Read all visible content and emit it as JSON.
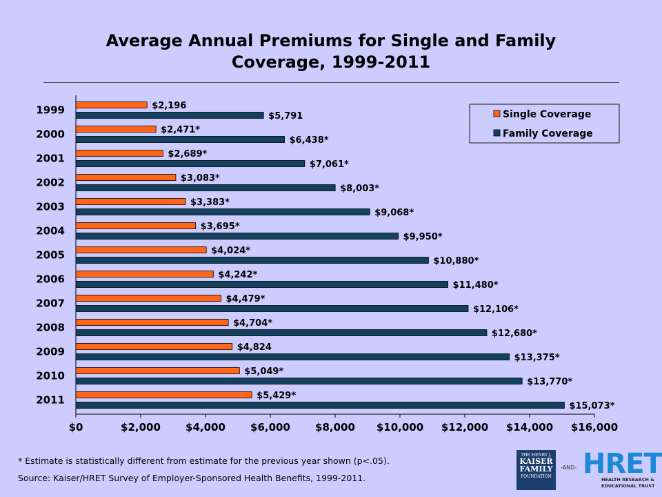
{
  "title_line1": "Average Annual Premiums for Single and Family",
  "title_line2": "Coverage, 1999-2011",
  "footnote": "* Estimate is statistically different from estimate for the previous year shown (p<.05).",
  "source": "Source:  Kaiser/HRET Survey of Employer-Sponsored Health Benefits, 1999-2011.",
  "logos": {
    "kff_top": "THE HENRY J.",
    "kff_lines": [
      "KAISER",
      "FAMILY"
    ],
    "kff_bottom": "FOUNDATION",
    "and_text": "-AND-",
    "hret": "HRET",
    "hret_sub": [
      "HEALTH RESEARCH &",
      "EDUCATIONAL TRUST"
    ]
  },
  "colors": {
    "single": "#ff6619",
    "family": "#13405f",
    "background": "#ccccff"
  },
  "chart_data": {
    "type": "bar",
    "orientation": "horizontal",
    "categories": [
      "1999",
      "2000",
      "2001",
      "2002",
      "2003",
      "2004",
      "2005",
      "2006",
      "2007",
      "2008",
      "2009",
      "2010",
      "2011"
    ],
    "series": [
      {
        "name": "Single Coverage",
        "values": [
          2196,
          2471,
          2689,
          3083,
          3383,
          3695,
          4024,
          4242,
          4479,
          4704,
          4824,
          5049,
          5429
        ],
        "labels": [
          "$2,196",
          "$2,471*",
          "$2,689*",
          "$3,083*",
          "$3,383*",
          "$3,695*",
          "$4,024*",
          "$4,242*",
          "$4,479*",
          "$4,704*",
          "$4,824",
          "$5,049*",
          "$5,429*"
        ]
      },
      {
        "name": "Family Coverage",
        "values": [
          5791,
          6438,
          7061,
          8003,
          9068,
          9950,
          10880,
          11480,
          12106,
          12680,
          13375,
          13770,
          15073
        ],
        "labels": [
          "$5,791",
          "$6,438*",
          "$7,061*",
          "$8,003*",
          "$9,068*",
          "$9,950*",
          "$10,880*",
          "$11,480*",
          "$12,106*",
          "$12,680*",
          "$13,375*",
          "$13,770*",
          "$15,073*"
        ]
      }
    ],
    "xlim": [
      0,
      16000
    ],
    "xticks": [
      0,
      2000,
      4000,
      6000,
      8000,
      10000,
      12000,
      14000,
      16000
    ],
    "xtick_labels": [
      "$0",
      "$2,000",
      "$4,000",
      "$6,000",
      "$8,000",
      "$10,000",
      "$12,000",
      "$14,000",
      "$16,000"
    ],
    "legend_position": "top-right",
    "grid": false
  }
}
